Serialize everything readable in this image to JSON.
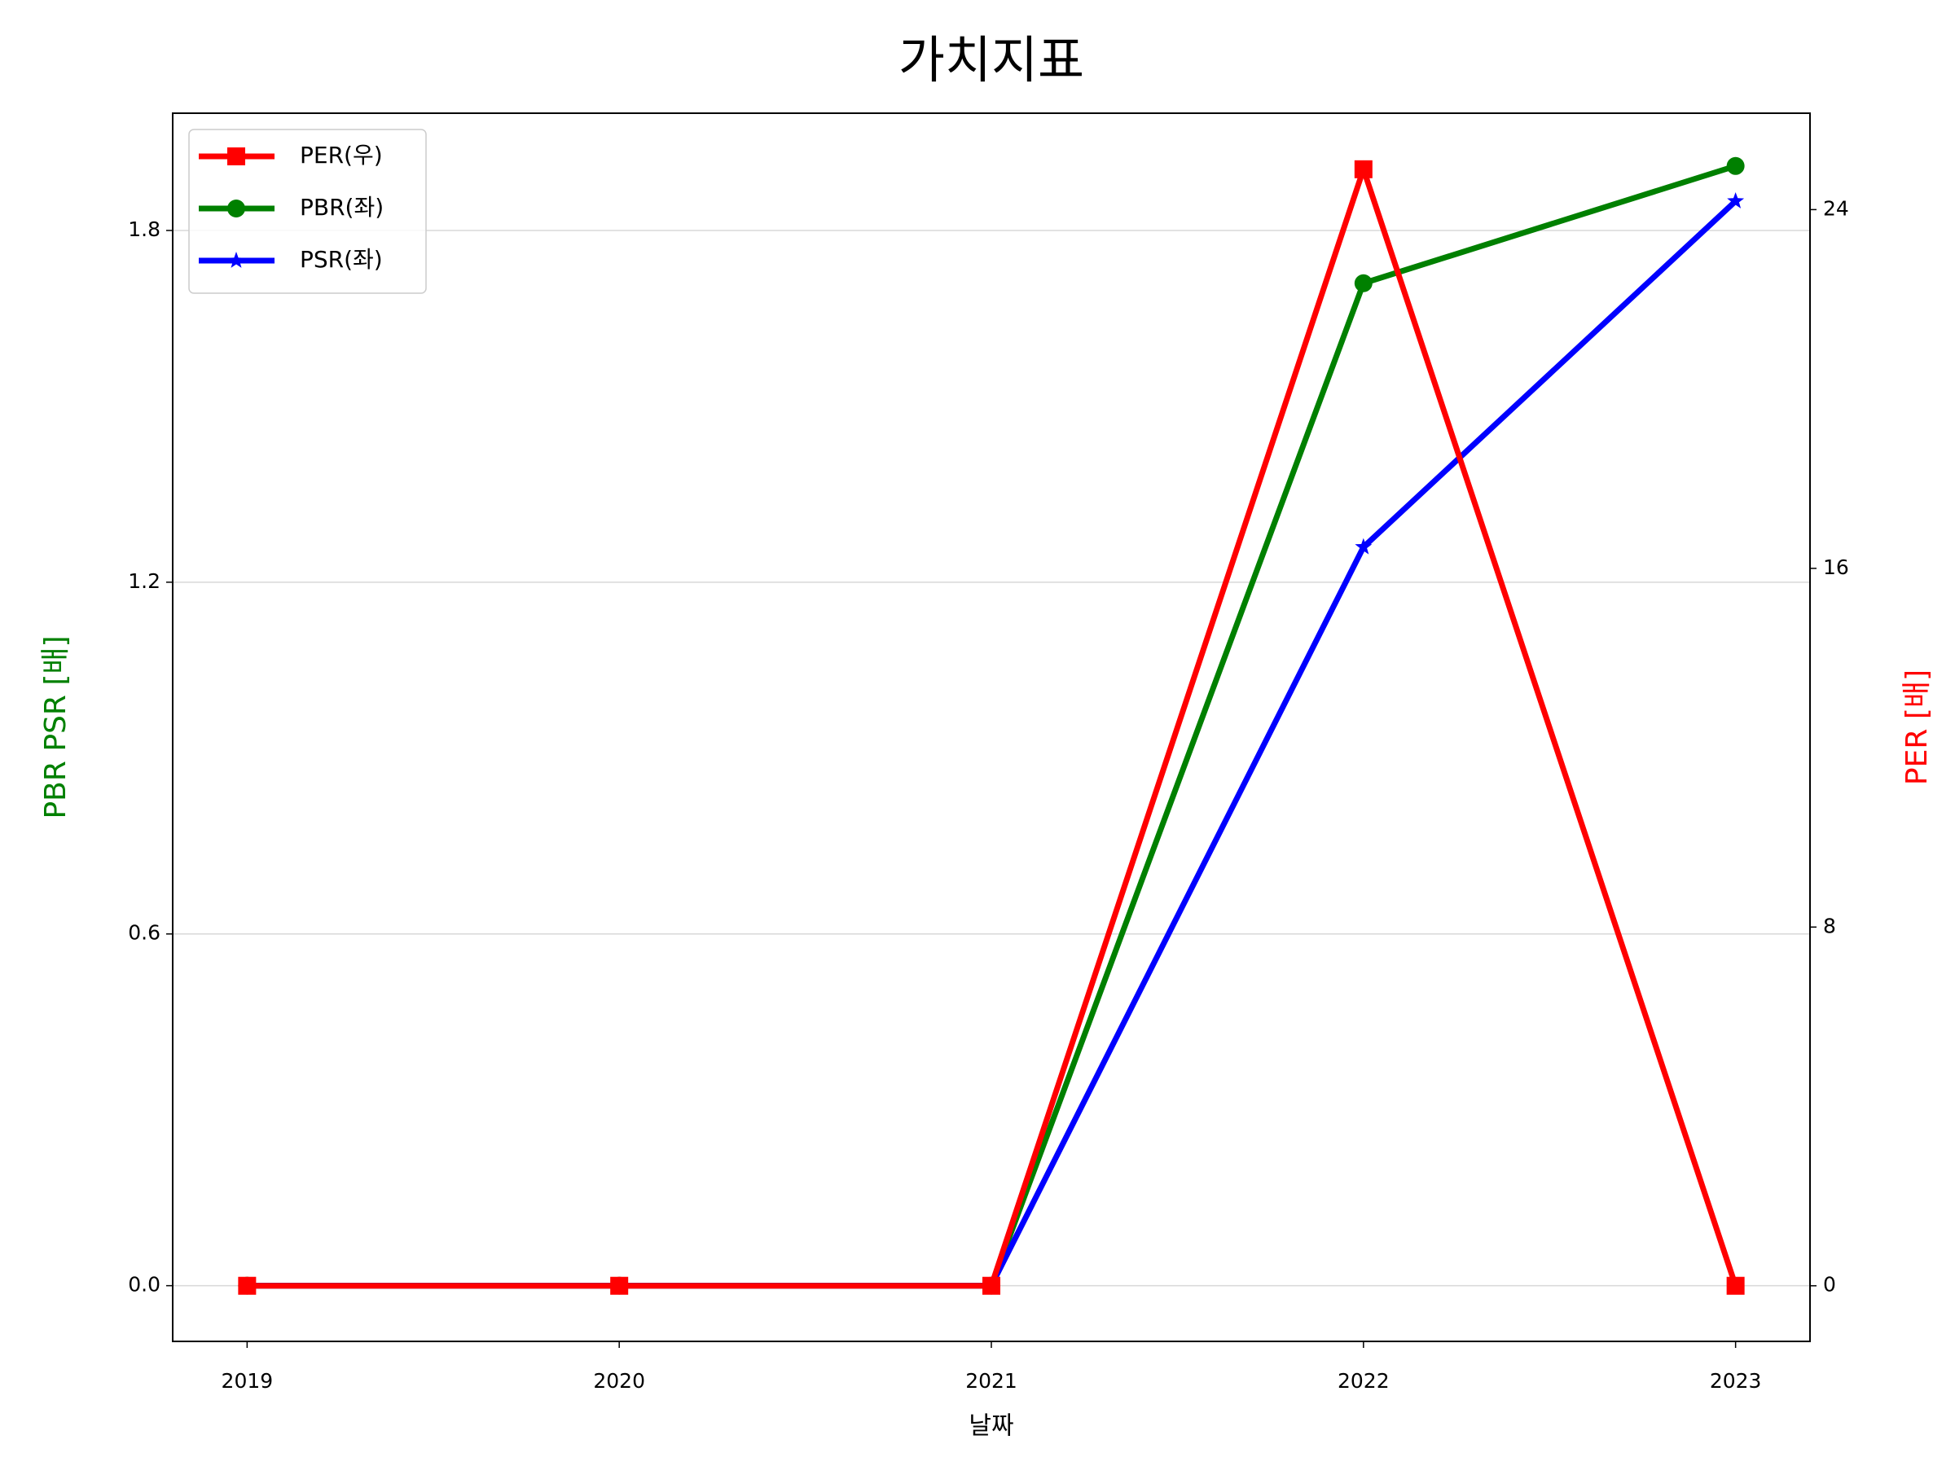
{
  "chart_data": {
    "type": "line",
    "title": "가치지표",
    "xlabel": "날짜",
    "ylabel": "PBR PSR [배]",
    "y2label": "PER [배]",
    "ylabel_color": "green",
    "y2label_color": "red",
    "x": [
      2019,
      2020,
      2021,
      2022,
      2023
    ],
    "series": [
      {
        "name": "PER(우)",
        "color": "red",
        "marker": "square",
        "axis": "y2",
        "values": [
          0,
          0,
          0,
          24.9,
          0
        ]
      },
      {
        "name": "PBR(좌)",
        "color": "green",
        "marker": "circle",
        "values": [
          0,
          0,
          0,
          1.71,
          1.91
        ]
      },
      {
        "name": "PSR(좌)",
        "color": "blue",
        "marker": "star",
        "values": [
          0,
          0,
          0,
          1.26,
          1.85
        ]
      }
    ],
    "xlim": [
      2018.8,
      2023.2
    ],
    "xticks": [
      2019,
      2020,
      2021,
      2022,
      2023
    ],
    "ylim": [
      -0.095,
      2.0
    ],
    "yticks": [
      {
        "value": 0,
        "label": "0.0"
      },
      0.6,
      1.2,
      1.8
    ],
    "y2lim": [
      -1.24,
      26.15
    ],
    "y2ticks": [
      0,
      8,
      16,
      24
    ],
    "grid": true,
    "legend": "upper left"
  }
}
